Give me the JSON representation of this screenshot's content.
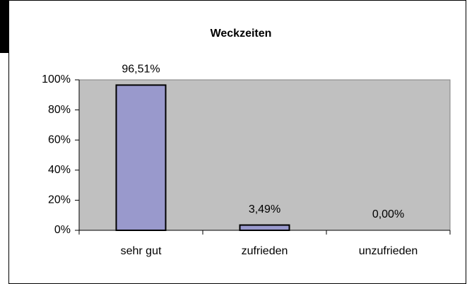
{
  "chart_data": {
    "type": "bar",
    "title": "Weckzeiten",
    "categories": [
      "sehr gut",
      "zufrieden",
      "unzufrieden"
    ],
    "values": [
      96.51,
      3.49,
      0.0
    ],
    "value_labels": [
      "96,51%",
      "3,49%",
      "0,00%"
    ],
    "color": "#9999cc",
    "ylim": [
      0,
      100
    ],
    "yticks": [
      {
        "value": 0,
        "label": "0%"
      },
      {
        "value": 20,
        "label": "20%"
      },
      {
        "value": 40,
        "label": "40%"
      },
      {
        "value": 60,
        "label": "60%"
      },
      {
        "value": 80,
        "label": "80%"
      },
      {
        "value": 100,
        "label": "100%"
      }
    ],
    "grid": false
  }
}
